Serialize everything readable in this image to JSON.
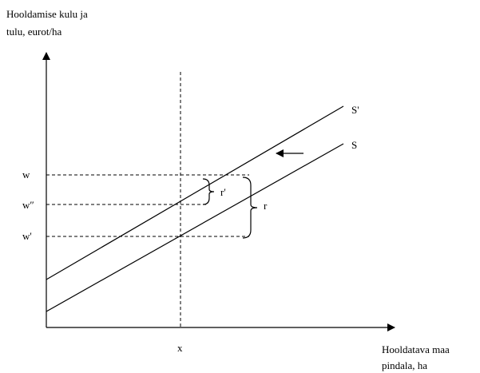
{
  "y_axis_label": [
    "Hooldamise kulu ja",
    "tulu, eurot/ha"
  ],
  "x_axis_label": [
    "Hooldatava maa",
    "pindala, ha"
  ],
  "y_labels": [
    "w",
    "w″",
    "w'"
  ],
  "x_label": "x",
  "curves": [
    "S'",
    "S"
  ],
  "brackets": [
    "r'",
    "r"
  ]
}
